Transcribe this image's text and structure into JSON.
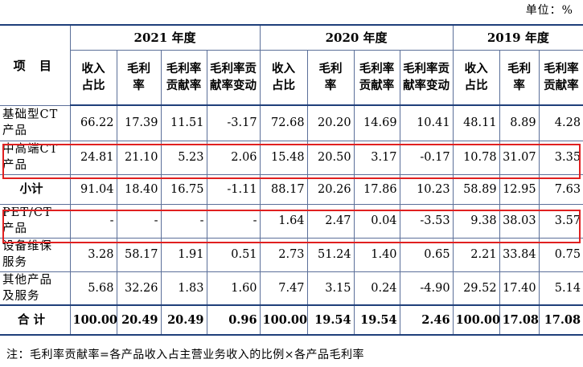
{
  "unit_label": "单位：%",
  "header": {
    "project": "项 目",
    "years": [
      "2021 年度",
      "2020 年度",
      "2019 年度"
    ],
    "cols_2021": [
      "收入占比",
      "毛利率",
      "毛利率贡献率",
      "毛利率贡献率变动"
    ],
    "cols_2020": [
      "收入占比",
      "毛利率",
      "毛利率贡献率",
      "毛利率贡献率变动"
    ],
    "cols_2019": [
      "收入占比",
      "毛利率",
      "毛利率贡献率"
    ]
  },
  "rows": [
    {
      "name": "基础型CT产品",
      "values": [
        "66.22",
        "17.39",
        "11.51",
        "-3.17",
        "72.68",
        "20.20",
        "14.69",
        "10.41",
        "48.11",
        "8.89",
        "4.28"
      ]
    },
    {
      "name": "中高端CT产品",
      "values": [
        "24.81",
        "21.10",
        "5.23",
        "2.06",
        "15.48",
        "20.50",
        "3.17",
        "-0.17",
        "10.78",
        "31.07",
        "3.35"
      ]
    },
    {
      "name": "小计",
      "values": [
        "91.04",
        "18.40",
        "16.75",
        "-1.11",
        "88.17",
        "20.26",
        "17.86",
        "10.23",
        "58.89",
        "12.95",
        "7.63"
      ]
    },
    {
      "name": "PET/CT产品",
      "values": [
        "-",
        "-",
        "-",
        "-",
        "1.64",
        "2.47",
        "0.04",
        "-3.53",
        "9.38",
        "38.03",
        "3.57"
      ]
    },
    {
      "name": "设备维保服务",
      "values": [
        "3.28",
        "58.17",
        "1.91",
        "0.51",
        "2.73",
        "51.24",
        "1.40",
        "0.65",
        "2.21",
        "33.84",
        "0.75"
      ]
    },
    {
      "name": "其他产品及服务",
      "values": [
        "5.68",
        "32.26",
        "1.83",
        "1.60",
        "7.47",
        "3.15",
        "0.24",
        "-4.90",
        "29.52",
        "17.40",
        "5.14"
      ]
    },
    {
      "name": "合 计",
      "values": [
        "100.00",
        "20.49",
        "20.49",
        "0.96",
        "100.00",
        "19.54",
        "19.54",
        "2.46",
        "100.00",
        "17.08",
        "17.08"
      ]
    }
  ],
  "note": "注：毛利率贡献率=各产品收入占主营业务收入的比例×各产品毛利率",
  "highlight_color": "#e02020"
}
